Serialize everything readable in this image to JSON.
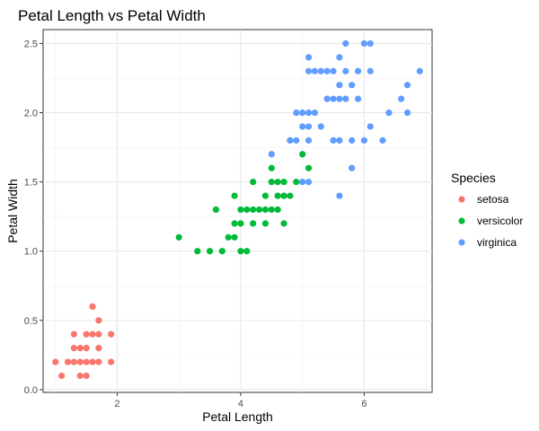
{
  "chart_data": {
    "type": "scatter",
    "title": "Petal Length vs Petal Width",
    "xlabel": "Petal Length",
    "ylabel": "Petal Width",
    "xlim": [
      0.8,
      7.1
    ],
    "ylim": [
      -0.02,
      2.6
    ],
    "x_ticks": [
      2,
      4,
      6
    ],
    "x_tick_labels": [
      "2",
      "4",
      "6"
    ],
    "y_ticks": [
      0.0,
      0.5,
      1.0,
      1.5,
      2.0,
      2.5
    ],
    "y_tick_labels": [
      "0.0",
      "0.5",
      "1.0",
      "1.5",
      "2.0",
      "2.5"
    ],
    "grid": true,
    "legend": {
      "title": "Species",
      "position": "right"
    },
    "series": [
      {
        "name": "setosa",
        "color": "#F8766D",
        "points": [
          [
            1.0,
            0.2
          ],
          [
            1.1,
            0.1
          ],
          [
            1.2,
            0.2
          ],
          [
            1.3,
            0.2
          ],
          [
            1.3,
            0.3
          ],
          [
            1.3,
            0.4
          ],
          [
            1.4,
            0.1
          ],
          [
            1.4,
            0.2
          ],
          [
            1.4,
            0.3
          ],
          [
            1.5,
            0.1
          ],
          [
            1.5,
            0.2
          ],
          [
            1.5,
            0.3
          ],
          [
            1.5,
            0.4
          ],
          [
            1.6,
            0.2
          ],
          [
            1.6,
            0.4
          ],
          [
            1.6,
            0.6
          ],
          [
            1.7,
            0.2
          ],
          [
            1.7,
            0.3
          ],
          [
            1.7,
            0.4
          ],
          [
            1.7,
            0.5
          ],
          [
            1.9,
            0.2
          ],
          [
            1.9,
            0.4
          ]
        ]
      },
      {
        "name": "versicolor",
        "color": "#00BA38",
        "points": [
          [
            3.0,
            1.1
          ],
          [
            3.3,
            1.0
          ],
          [
            3.5,
            1.0
          ],
          [
            3.6,
            1.3
          ],
          [
            3.7,
            1.0
          ],
          [
            3.8,
            1.1
          ],
          [
            3.9,
            1.1
          ],
          [
            3.9,
            1.2
          ],
          [
            3.9,
            1.4
          ],
          [
            4.0,
            1.0
          ],
          [
            4.0,
            1.2
          ],
          [
            4.0,
            1.3
          ],
          [
            4.1,
            1.0
          ],
          [
            4.1,
            1.3
          ],
          [
            4.2,
            1.2
          ],
          [
            4.2,
            1.3
          ],
          [
            4.2,
            1.5
          ],
          [
            4.3,
            1.3
          ],
          [
            4.4,
            1.2
          ],
          [
            4.4,
            1.3
          ],
          [
            4.4,
            1.4
          ],
          [
            4.5,
            1.3
          ],
          [
            4.5,
            1.5
          ],
          [
            4.5,
            1.6
          ],
          [
            4.6,
            1.3
          ],
          [
            4.6,
            1.4
          ],
          [
            4.6,
            1.5
          ],
          [
            4.7,
            1.2
          ],
          [
            4.7,
            1.4
          ],
          [
            4.7,
            1.5
          ],
          [
            4.8,
            1.4
          ],
          [
            4.8,
            1.8
          ],
          [
            4.9,
            1.5
          ],
          [
            5.0,
            1.7
          ],
          [
            5.1,
            1.6
          ]
        ]
      },
      {
        "name": "virginica",
        "color": "#619CFF",
        "points": [
          [
            4.5,
            1.7
          ],
          [
            4.8,
            1.8
          ],
          [
            4.9,
            1.8
          ],
          [
            4.9,
            2.0
          ],
          [
            5.0,
            1.5
          ],
          [
            5.0,
            1.9
          ],
          [
            5.0,
            2.0
          ],
          [
            5.1,
            1.5
          ],
          [
            5.1,
            1.8
          ],
          [
            5.1,
            1.9
          ],
          [
            5.1,
            2.0
          ],
          [
            5.1,
            2.3
          ],
          [
            5.1,
            2.4
          ],
          [
            5.2,
            2.0
          ],
          [
            5.2,
            2.3
          ],
          [
            5.3,
            1.9
          ],
          [
            5.3,
            2.3
          ],
          [
            5.4,
            2.1
          ],
          [
            5.4,
            2.3
          ],
          [
            5.5,
            1.8
          ],
          [
            5.5,
            2.1
          ],
          [
            5.5,
            2.3
          ],
          [
            5.6,
            1.4
          ],
          [
            5.6,
            1.8
          ],
          [
            5.6,
            2.1
          ],
          [
            5.6,
            2.2
          ],
          [
            5.6,
            2.4
          ],
          [
            5.7,
            2.1
          ],
          [
            5.7,
            2.3
          ],
          [
            5.7,
            2.5
          ],
          [
            5.8,
            1.6
          ],
          [
            5.8,
            1.8
          ],
          [
            5.8,
            2.2
          ],
          [
            5.9,
            2.1
          ],
          [
            5.9,
            2.3
          ],
          [
            6.0,
            1.8
          ],
          [
            6.0,
            2.5
          ],
          [
            6.1,
            1.9
          ],
          [
            6.1,
            2.3
          ],
          [
            6.1,
            2.5
          ],
          [
            6.3,
            1.8
          ],
          [
            6.4,
            2.0
          ],
          [
            6.6,
            2.1
          ],
          [
            6.7,
            2.0
          ],
          [
            6.7,
            2.2
          ],
          [
            6.9,
            2.3
          ]
        ]
      }
    ]
  }
}
